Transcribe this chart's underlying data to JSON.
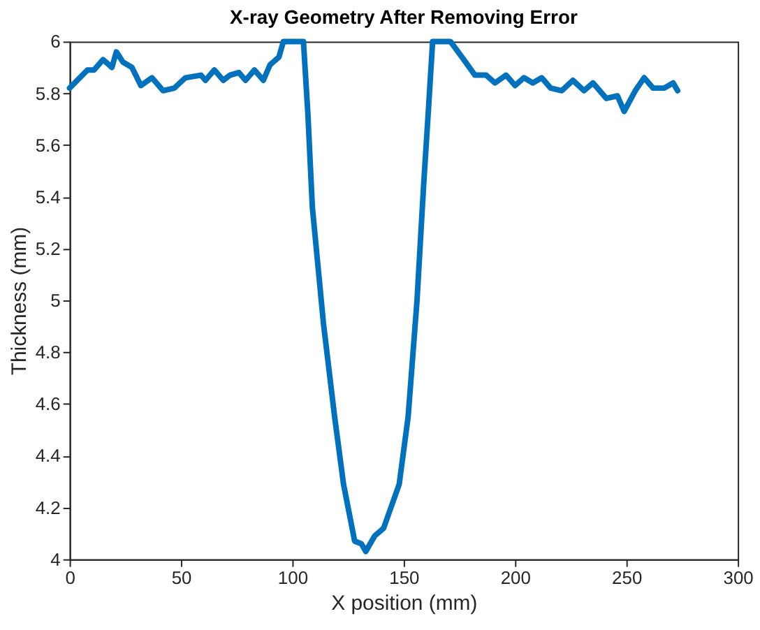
{
  "chart_data": {
    "type": "line",
    "title": "X-ray Geometry After Removing Error",
    "xlabel": "X position (mm)",
    "ylabel": "Thickness (mm)",
    "xlim": [
      0,
      300
    ],
    "xticks": [
      0,
      50,
      100,
      150,
      200,
      250,
      300
    ],
    "ylim": [
      4,
      6
    ],
    "yticks": [
      4,
      4.2,
      4.4,
      4.6,
      4.8,
      5,
      5.2,
      5.4,
      5.6,
      5.8,
      6
    ],
    "grid": false,
    "legend": false,
    "series": [
      {
        "color": "#0072bd",
        "x": [
          0,
          8,
          11,
          15,
          19,
          21,
          24,
          28,
          32,
          37,
          42,
          47,
          52,
          59,
          61,
          65,
          69,
          72,
          76,
          79,
          83,
          87,
          90,
          94,
          96,
          105,
          107,
          109,
          114,
          119,
          123,
          128,
          131,
          133,
          137,
          141,
          148,
          152,
          156,
          159,
          161,
          163,
          171,
          177,
          182,
          187,
          191,
          196,
          200,
          204,
          208,
          212,
          216,
          221,
          226,
          231,
          235,
          241,
          246,
          249,
          254,
          258,
          262,
          267,
          271,
          273
        ],
        "values": [
          5.82,
          5.89,
          5.89,
          5.93,
          5.9,
          5.96,
          5.92,
          5.9,
          5.83,
          5.86,
          5.81,
          5.82,
          5.86,
          5.87,
          5.85,
          5.89,
          5.85,
          5.87,
          5.88,
          5.85,
          5.89,
          5.85,
          5.91,
          5.94,
          6.0,
          6.0,
          5.72,
          5.36,
          4.91,
          4.55,
          4.29,
          4.07,
          4.06,
          4.03,
          4.09,
          4.12,
          4.29,
          4.55,
          5.0,
          5.45,
          5.72,
          6.0,
          6.0,
          5.93,
          5.87,
          5.87,
          5.84,
          5.87,
          5.83,
          5.86,
          5.84,
          5.86,
          5.82,
          5.81,
          5.85,
          5.81,
          5.84,
          5.78,
          5.79,
          5.73,
          5.81,
          5.86,
          5.82,
          5.82,
          5.84,
          5.81
        ]
      }
    ]
  }
}
